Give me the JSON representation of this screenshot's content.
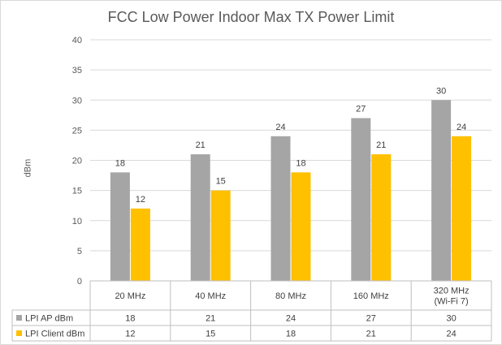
{
  "chart_data": {
    "type": "bar",
    "title": "FCC Low Power Indoor Max TX Power Limit",
    "ylabel": "dBm",
    "xlabel": "",
    "ylim": [
      0,
      40
    ],
    "yticks": [
      0,
      5,
      10,
      15,
      20,
      25,
      30,
      35,
      40
    ],
    "grid": true,
    "legend": "data-table",
    "categories": [
      [
        "20 MHz"
      ],
      [
        "40 MHz"
      ],
      [
        "80 MHz"
      ],
      [
        "160 MHz"
      ],
      [
        "320 MHz",
        "(Wi-Fi 7)"
      ]
    ],
    "series": [
      {
        "name": "LPI AP dBm",
        "color": "#a5a5a5",
        "values": [
          18,
          21,
          24,
          27,
          30
        ]
      },
      {
        "name": "LPI Client dBm",
        "color": "#ffc000",
        "values": [
          12,
          15,
          18,
          21,
          24
        ]
      }
    ]
  }
}
